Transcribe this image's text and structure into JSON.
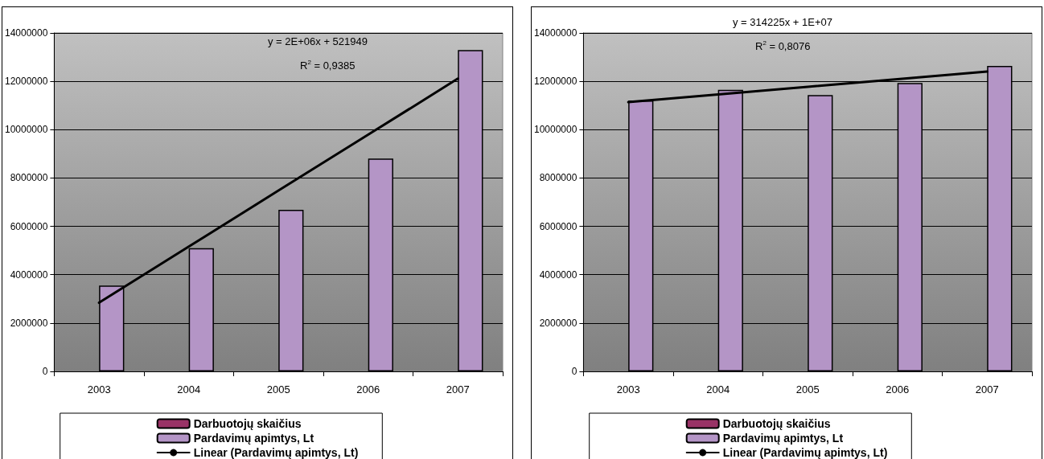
{
  "chart_data": [
    {
      "type": "bar",
      "categories": [
        "2003",
        "2004",
        "2005",
        "2006",
        "2007"
      ],
      "series": [
        {
          "name": "Darbuotojų skaičius",
          "color": "#993366",
          "values": [
            null,
            null,
            null,
            null,
            null
          ]
        },
        {
          "name": "Pardavimų apimtys, Lt",
          "color": "#b495c6",
          "values": [
            3550000,
            5100000,
            6680000,
            8800000,
            13290000
          ]
        },
        {
          "type": "line",
          "name": "Linear (Pardavimų apimtys, Lt)",
          "color": "#000000",
          "values": [
            2840000,
            5160000,
            7480000,
            9790000,
            12110000
          ]
        }
      ],
      "ylim": [
        0,
        14000000
      ],
      "yticks": [
        0,
        2000000,
        4000000,
        6000000,
        8000000,
        10000000,
        12000000,
        14000000
      ],
      "grid": "y",
      "legend": "bottom",
      "marker": "none",
      "annotations": [
        "y = 2E+06x + 521949",
        "R$^{2}$ = 0,9385"
      ]
    },
    {
      "type": "bar",
      "categories": [
        "2003",
        "2004",
        "2005",
        "2006",
        "2007"
      ],
      "series": [
        {
          "name": "Darbuotojų skaičius",
          "color": "#993366",
          "values": [
            null,
            null,
            null,
            null,
            null
          ]
        },
        {
          "name": "Pardavimų apimtys, Lt",
          "color": "#b495c6",
          "values": [
            11210000,
            11650000,
            11430000,
            11930000,
            12640000
          ]
        },
        {
          "type": "line",
          "name": "Linear (Pardavimų apimtys, Lt)",
          "color": "#000000",
          "values": [
            11140000,
            11460000,
            11770000,
            12090000,
            12400000
          ]
        }
      ],
      "ylim": [
        0,
        14000000
      ],
      "yticks": [
        0,
        2000000,
        4000000,
        6000000,
        8000000,
        10000000,
        12000000,
        14000000
      ],
      "grid": "y",
      "legend": "bottom",
      "marker": "none",
      "annotations": [
        "y = 314225x + 1E+07",
        "R$^{2}$ = 0,8076"
      ]
    }
  ]
}
